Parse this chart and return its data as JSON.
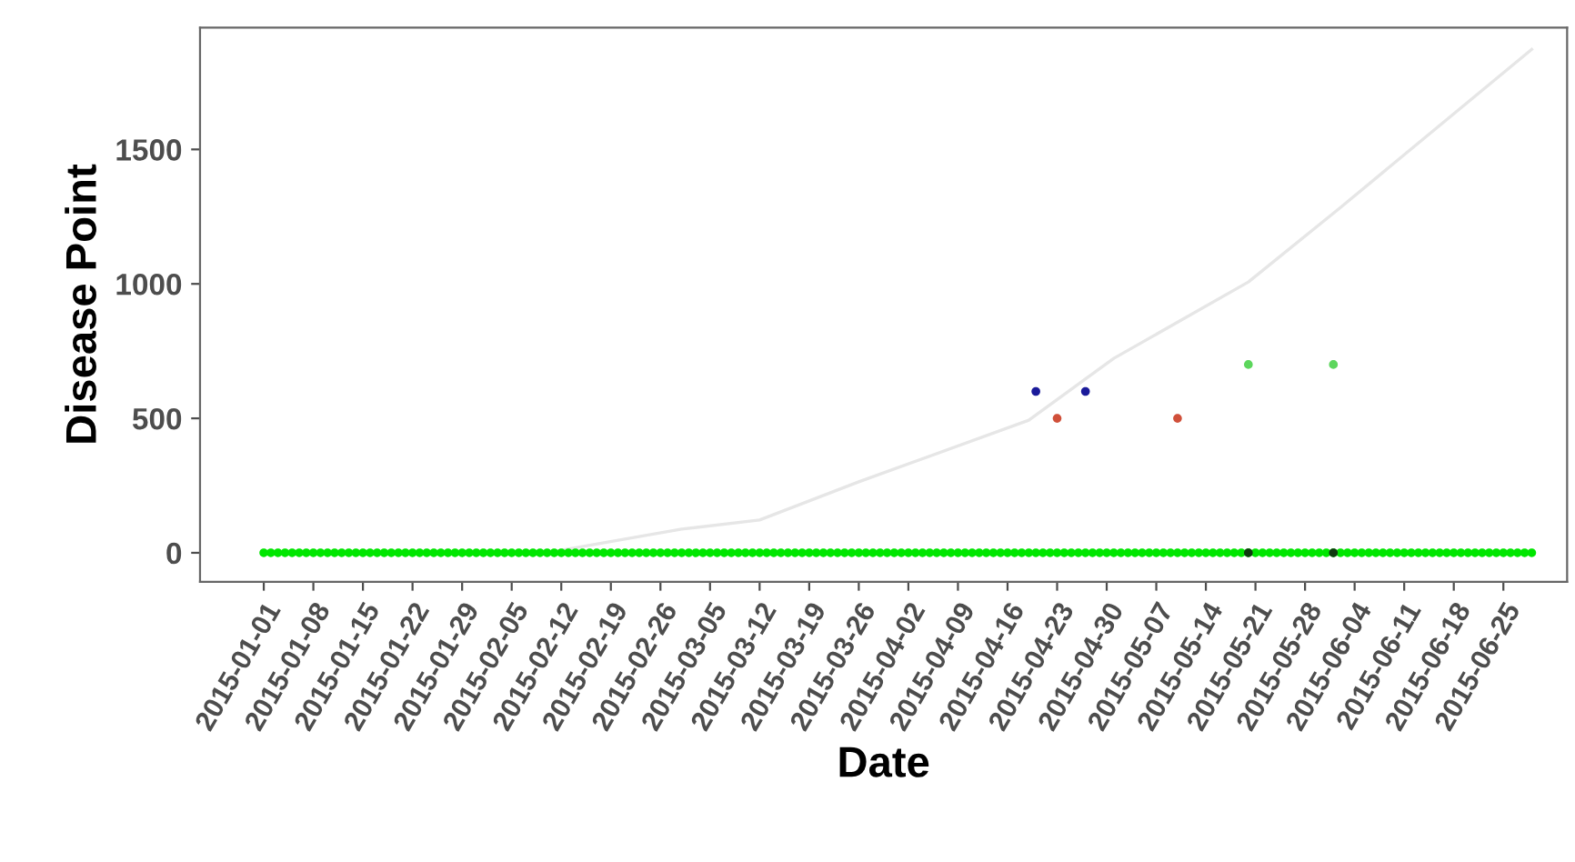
{
  "chart_data": {
    "type": "scatter",
    "xlabel": "Date",
    "ylabel": "Disease Point",
    "xlim": [
      "2014-12-23",
      "2015-07-04"
    ],
    "ylim": [
      -108,
      1953
    ],
    "yticks": [
      0,
      500,
      1000,
      1500
    ],
    "xticks": [
      "2015-01-01",
      "2015-01-08",
      "2015-01-15",
      "2015-01-22",
      "2015-01-29",
      "2015-02-05",
      "2015-02-12",
      "2015-02-19",
      "2015-02-26",
      "2015-03-05",
      "2015-03-12",
      "2015-03-19",
      "2015-03-26",
      "2015-04-02",
      "2015-04-09",
      "2015-04-16",
      "2015-04-23",
      "2015-04-30",
      "2015-05-07",
      "2015-05-14",
      "2015-05-21",
      "2015-05-28",
      "2015-06-04",
      "2015-06-11",
      "2015-06-18",
      "2015-06-25"
    ],
    "grid": false,
    "legend": false,
    "marker": "circle",
    "series": [
      {
        "type": "line",
        "marker": "none",
        "color": "#e6e6e6",
        "x": [
          "2015-01-01",
          "2015-02-10",
          "2015-03-01",
          "2015-03-12",
          "2015-03-26",
          "2015-04-19",
          "2015-05-01",
          "2015-05-20",
          "2015-06-02",
          "2015-06-29"
        ],
        "values": [
          0,
          0,
          88,
          122,
          264,
          493,
          723,
          1007,
          1284,
          1872
        ]
      },
      {
        "color": "#00e600",
        "x": [
          "2015-01-01",
          "2015-01-02",
          "2015-01-03",
          "2015-01-04",
          "2015-01-05",
          "2015-01-06",
          "2015-01-07",
          "2015-01-08",
          "2015-01-09",
          "2015-01-10",
          "2015-01-11",
          "2015-01-12",
          "2015-01-13",
          "2015-01-14",
          "2015-01-15",
          "2015-01-16",
          "2015-01-17",
          "2015-01-18",
          "2015-01-19",
          "2015-01-20",
          "2015-01-21",
          "2015-01-22",
          "2015-01-23",
          "2015-01-24",
          "2015-01-25",
          "2015-01-26",
          "2015-01-27",
          "2015-01-28",
          "2015-01-29",
          "2015-01-30",
          "2015-01-31",
          "2015-02-01",
          "2015-02-02",
          "2015-02-03",
          "2015-02-04",
          "2015-02-05",
          "2015-02-06",
          "2015-02-07",
          "2015-02-08",
          "2015-02-09",
          "2015-02-10",
          "2015-02-11",
          "2015-02-12",
          "2015-02-13",
          "2015-02-14",
          "2015-02-15",
          "2015-02-16",
          "2015-02-17",
          "2015-02-18",
          "2015-02-19",
          "2015-02-20",
          "2015-02-21",
          "2015-02-22",
          "2015-02-23",
          "2015-02-24",
          "2015-02-25",
          "2015-02-26",
          "2015-02-27",
          "2015-02-28",
          "2015-03-01",
          "2015-03-02",
          "2015-03-03",
          "2015-03-04",
          "2015-03-05",
          "2015-03-06",
          "2015-03-07",
          "2015-03-08",
          "2015-03-09",
          "2015-03-10",
          "2015-03-11",
          "2015-03-12",
          "2015-03-13",
          "2015-03-14",
          "2015-03-15",
          "2015-03-16",
          "2015-03-17",
          "2015-03-18",
          "2015-03-19",
          "2015-03-20",
          "2015-03-21",
          "2015-03-22",
          "2015-03-23",
          "2015-03-24",
          "2015-03-25",
          "2015-03-26",
          "2015-03-27",
          "2015-03-28",
          "2015-03-29",
          "2015-03-30",
          "2015-03-31",
          "2015-04-01",
          "2015-04-02",
          "2015-04-03",
          "2015-04-04",
          "2015-04-05",
          "2015-04-06",
          "2015-04-07",
          "2015-04-08",
          "2015-04-09",
          "2015-04-10",
          "2015-04-11",
          "2015-04-12",
          "2015-04-13",
          "2015-04-14",
          "2015-04-15",
          "2015-04-16",
          "2015-04-17",
          "2015-04-18",
          "2015-04-19",
          "2015-04-20",
          "2015-04-21",
          "2015-04-22",
          "2015-04-23",
          "2015-04-24",
          "2015-04-25",
          "2015-04-26",
          "2015-04-27",
          "2015-04-28",
          "2015-04-29",
          "2015-04-30",
          "2015-05-01",
          "2015-05-02",
          "2015-05-03",
          "2015-05-04",
          "2015-05-05",
          "2015-05-06",
          "2015-05-07",
          "2015-05-08",
          "2015-05-09",
          "2015-05-10",
          "2015-05-11",
          "2015-05-12",
          "2015-05-13",
          "2015-05-14",
          "2015-05-15",
          "2015-05-16",
          "2015-05-17",
          "2015-05-18",
          "2015-05-19",
          "2015-05-20",
          "2015-05-21",
          "2015-05-22",
          "2015-05-23",
          "2015-05-24",
          "2015-05-25",
          "2015-05-26",
          "2015-05-27",
          "2015-05-28",
          "2015-05-29",
          "2015-05-30",
          "2015-05-31",
          "2015-06-01",
          "2015-06-02",
          "2015-06-03",
          "2015-06-04",
          "2015-06-05",
          "2015-06-06",
          "2015-06-07",
          "2015-06-08",
          "2015-06-09",
          "2015-06-10",
          "2015-06-11",
          "2015-06-12",
          "2015-06-13",
          "2015-06-14",
          "2015-06-15",
          "2015-06-16",
          "2015-06-17",
          "2015-06-18",
          "2015-06-19",
          "2015-06-20",
          "2015-06-21",
          "2015-06-22",
          "2015-06-23",
          "2015-06-24",
          "2015-06-25",
          "2015-06-26",
          "2015-06-27",
          "2015-06-28",
          "2015-06-29"
        ],
        "values": [
          0,
          0,
          0,
          0,
          0,
          0,
          0,
          0,
          0,
          0,
          0,
          0,
          0,
          0,
          0,
          0,
          0,
          0,
          0,
          0,
          0,
          0,
          0,
          0,
          0,
          0,
          0,
          0,
          0,
          0,
          0,
          0,
          0,
          0,
          0,
          0,
          0,
          0,
          0,
          0,
          0,
          0,
          0,
          0,
          0,
          0,
          0,
          0,
          0,
          0,
          0,
          0,
          0,
          0,
          0,
          0,
          0,
          0,
          0,
          0,
          0,
          0,
          0,
          0,
          0,
          0,
          0,
          0,
          0,
          0,
          0,
          0,
          0,
          0,
          0,
          0,
          0,
          0,
          0,
          0,
          0,
          0,
          0,
          0,
          0,
          0,
          0,
          0,
          0,
          0,
          0,
          0,
          0,
          0,
          0,
          0,
          0,
          0,
          0,
          0,
          0,
          0,
          0,
          0,
          0,
          0,
          0,
          0,
          0,
          0,
          0,
          0,
          0,
          0,
          0,
          0,
          0,
          0,
          0,
          0,
          0,
          0,
          0,
          0,
          0,
          0,
          0,
          0,
          0,
          0,
          0,
          0,
          0,
          0,
          0,
          0,
          0,
          0,
          0,
          0,
          0,
          0,
          0,
          0,
          0,
          0,
          0,
          0,
          0,
          0,
          0,
          0,
          0,
          0,
          0,
          0,
          0,
          0,
          0,
          0,
          0,
          0,
          0,
          0,
          0,
          0,
          0,
          0,
          0,
          0,
          0,
          0,
          0,
          0,
          0,
          0,
          0,
          0,
          0,
          0
        ]
      },
      {
        "color": "#1a1a9a",
        "x": [
          "2015-04-20",
          "2015-04-27"
        ],
        "values": [
          600,
          600
        ]
      },
      {
        "color": "#d0503a",
        "x": [
          "2015-04-23",
          "2015-05-10"
        ],
        "values": [
          500,
          500
        ]
      },
      {
        "color": "#5cd65c",
        "x": [
          "2015-05-20",
          "2015-06-01"
        ],
        "values": [
          700,
          700
        ]
      },
      {
        "color": "#103a10",
        "x": [
          "2015-05-20",
          "2015-06-01"
        ],
        "values": [
          0,
          0
        ]
      }
    ]
  }
}
